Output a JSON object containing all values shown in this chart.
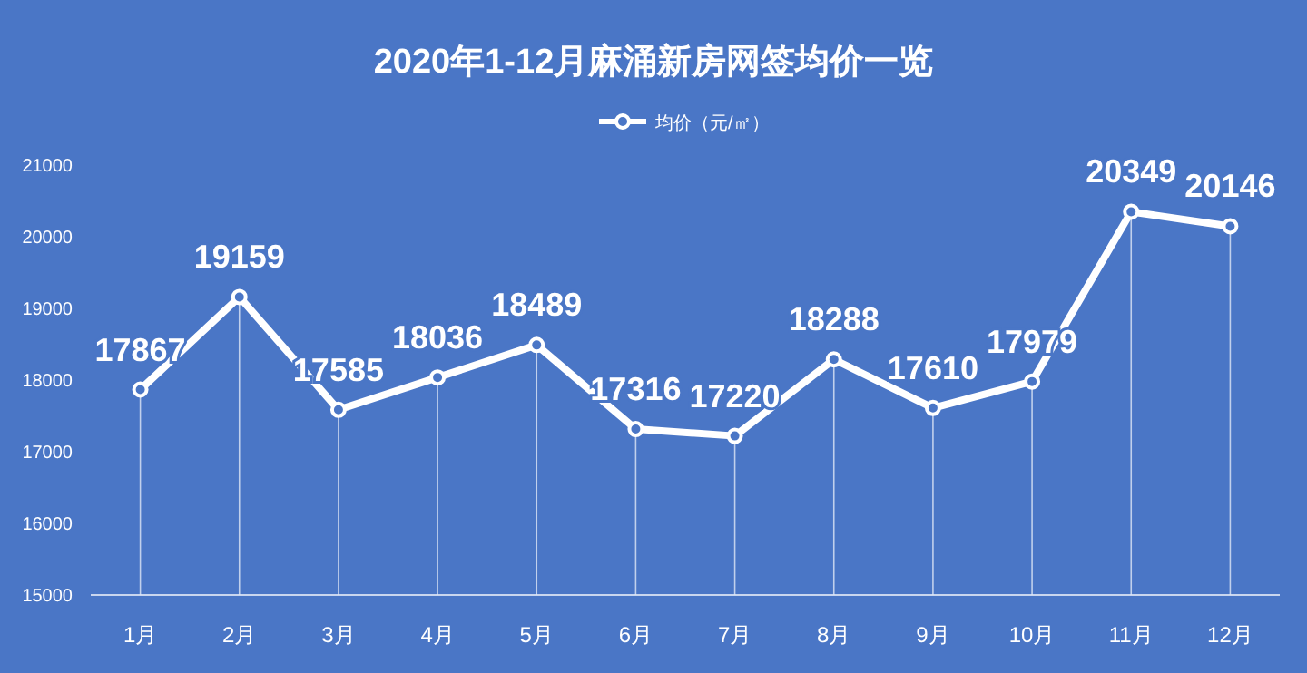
{
  "chart_data": {
    "type": "line",
    "title": "2020年1-12月麻涌新房网签均价一览",
    "categories": [
      "1月",
      "2月",
      "3月",
      "4月",
      "5月",
      "6月",
      "7月",
      "8月",
      "9月",
      "10月",
      "11月",
      "12月"
    ],
    "series": [
      {
        "name": "均价（元/㎡）",
        "color": "#ffffff",
        "values": [
          17867,
          19159,
          17585,
          18036,
          18489,
          17316,
          17220,
          18288,
          17610,
          17979,
          20349,
          20146
        ]
      }
    ],
    "ylim": [
      15000,
      21000
    ],
    "yticks": [
      15000,
      16000,
      17000,
      18000,
      19000,
      20000,
      21000
    ],
    "data_labels": true,
    "legend": "top",
    "marker": "circle",
    "line_style": "solid",
    "grid": "x"
  }
}
